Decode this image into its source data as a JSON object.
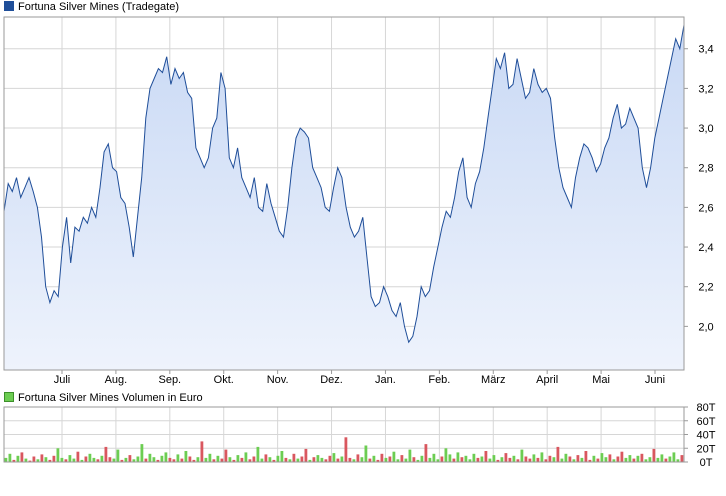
{
  "colors": {
    "price_line": "#1f4e99",
    "price_fill_top": "#c9d9f5",
    "price_fill_bottom": "#eef3fc",
    "grid": "#d6d6d6",
    "frame": "#9a9a9a",
    "volume_up": "#6ccd52",
    "volume_down": "#d9575f"
  },
  "chart_data": [
    {
      "type": "area",
      "legend": "Fortuna Silver Mines (Tradegate)",
      "x_tick_labels": [
        "Juli",
        "Aug.",
        "Sep.",
        "Okt.",
        "Nov.",
        "Dez.",
        "Jan.",
        "Feb.",
        "März",
        "April",
        "Mai",
        "Juni"
      ],
      "y_tick_labels": [
        "2,0",
        "2,2",
        "2,4",
        "2,6",
        "2,8",
        "3,0",
        "3,2",
        "3,4"
      ],
      "yticks": [
        2.0,
        2.2,
        2.4,
        2.6,
        2.8,
        3.0,
        3.2,
        3.4
      ],
      "ylim": [
        1.78,
        3.56
      ],
      "grid": true,
      "series": [
        {
          "values": [
            2.58,
            2.72,
            2.68,
            2.75,
            2.65,
            2.7,
            2.75,
            2.68,
            2.6,
            2.45,
            2.2,
            2.12,
            2.18,
            2.15,
            2.4,
            2.55,
            2.32,
            2.5,
            2.48,
            2.55,
            2.52,
            2.6,
            2.55,
            2.7,
            2.88,
            2.92,
            2.8,
            2.78,
            2.65,
            2.62,
            2.5,
            2.35,
            2.55,
            2.75,
            3.05,
            3.2,
            3.25,
            3.3,
            3.28,
            3.36,
            3.22,
            3.3,
            3.25,
            3.28,
            3.18,
            3.15,
            2.9,
            2.85,
            2.8,
            2.85,
            3.0,
            3.05,
            3.28,
            3.2,
            2.85,
            2.8,
            2.9,
            2.75,
            2.7,
            2.65,
            2.75,
            2.6,
            2.58,
            2.72,
            2.62,
            2.55,
            2.48,
            2.45,
            2.6,
            2.8,
            2.95,
            3.0,
            2.98,
            2.95,
            2.8,
            2.75,
            2.7,
            2.6,
            2.58,
            2.7,
            2.8,
            2.75,
            2.6,
            2.5,
            2.45,
            2.48,
            2.55,
            2.35,
            2.15,
            2.1,
            2.12,
            2.2,
            2.15,
            2.08,
            2.05,
            2.12,
            2.0,
            1.92,
            1.95,
            2.05,
            2.2,
            2.15,
            2.18,
            2.3,
            2.4,
            2.5,
            2.58,
            2.55,
            2.65,
            2.78,
            2.85,
            2.65,
            2.6,
            2.72,
            2.78,
            2.9,
            3.05,
            3.2,
            3.35,
            3.3,
            3.38,
            3.2,
            3.22,
            3.35,
            3.25,
            3.15,
            3.18,
            3.3,
            3.22,
            3.18,
            3.2,
            3.15,
            2.95,
            2.8,
            2.7,
            2.65,
            2.6,
            2.75,
            2.85,
            2.92,
            2.9,
            2.85,
            2.78,
            2.82,
            2.9,
            2.95,
            3.05,
            3.12,
            3.0,
            3.02,
            3.1,
            3.05,
            3.0,
            2.8,
            2.7,
            2.8,
            2.95,
            3.05,
            3.15,
            3.25,
            3.35,
            3.45,
            3.4,
            3.52
          ]
        }
      ]
    },
    {
      "type": "bar",
      "legend": "Fortuna Silver Mines Volumen in Euro",
      "y_tick_labels": [
        "0T",
        "20T",
        "40T",
        "60T",
        "80T"
      ],
      "yticks": [
        0,
        20,
        40,
        60,
        80
      ],
      "ylim": [
        0,
        80
      ],
      "grid": true,
      "series": [
        {
          "up": [
            1,
            1,
            0,
            1,
            0,
            1,
            0,
            0,
            1,
            0,
            1,
            0,
            0,
            1,
            1,
            0,
            1,
            1,
            0,
            1,
            0,
            1,
            1,
            0,
            1,
            0,
            0,
            1,
            1,
            0,
            1,
            0,
            1,
            1,
            1,
            0,
            1,
            1,
            0,
            1,
            1,
            0,
            0,
            1,
            0,
            1,
            0,
            0,
            1,
            0,
            1,
            1,
            0,
            1,
            0,
            0,
            1,
            0,
            1,
            0,
            1,
            0,
            0,
            1,
            1,
            0,
            1,
            0,
            1,
            1,
            0,
            1,
            0,
            1,
            0,
            0,
            1,
            0,
            1,
            1,
            0,
            0,
            1,
            0,
            1,
            0,
            0,
            1,
            0,
            1,
            1,
            0,
            1,
            0,
            0,
            1,
            0,
            1,
            1,
            0,
            1,
            1,
            0,
            1,
            1,
            0,
            1,
            1,
            1,
            0,
            1,
            1,
            0,
            1,
            0,
            1,
            1,
            1,
            0,
            1,
            0,
            1,
            1,
            0,
            1,
            0,
            0,
            1,
            0,
            1,
            0,
            0,
            1,
            0,
            1,
            0,
            0,
            1,
            0,
            1,
            1,
            0,
            1,
            0,
            1,
            0,
            0,
            1,
            0,
            1,
            1,
            0,
            1,
            0,
            0,
            1,
            1,
            0,
            1,
            0,
            1,
            1,
            0,
            1,
            1,
            0,
            1,
            1,
            1,
            0
          ],
          "values": [
            6,
            12,
            3,
            9,
            14,
            5,
            2,
            8,
            4,
            11,
            7,
            3,
            9,
            20,
            6,
            4,
            10,
            5,
            15,
            3,
            8,
            12,
            6,
            4,
            9,
            22,
            7,
            5,
            18,
            3,
            6,
            10,
            4,
            8,
            26,
            5,
            12,
            7,
            3,
            9,
            14,
            6,
            4,
            11,
            5,
            16,
            8,
            3,
            7,
            30,
            6,
            12,
            4,
            9,
            5,
            18,
            7,
            3,
            10,
            6,
            14,
            4,
            8,
            22,
            5,
            11,
            7,
            3,
            9,
            16,
            6,
            4,
            12,
            5,
            8,
            19,
            3,
            7,
            10,
            6,
            4,
            9,
            13,
            5,
            8,
            36,
            6,
            4,
            11,
            7,
            24,
            5,
            9,
            3,
            12,
            6,
            8,
            15,
            4,
            10,
            5,
            18,
            7,
            3,
            9,
            26,
            6,
            12,
            4,
            8,
            20,
            11,
            5,
            14,
            7,
            9,
            4,
            12,
            6,
            8,
            16,
            5,
            10,
            3,
            7,
            13,
            6,
            9,
            4,
            18,
            8,
            5,
            11,
            6,
            14,
            4,
            9,
            7,
            22,
            5,
            12,
            8,
            4,
            10,
            6,
            16,
            3,
            9,
            5,
            13,
            7,
            11,
            4,
            8,
            15,
            6,
            10,
            5,
            9,
            12,
            4,
            7,
            19,
            6,
            11,
            5,
            8,
            14,
            4,
            10
          ]
        }
      ]
    }
  ]
}
